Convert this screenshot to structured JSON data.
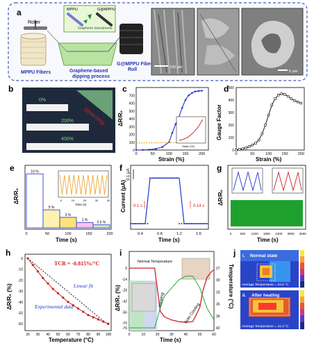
{
  "panels": {
    "a": {
      "label": "a",
      "roller_label": "Roller",
      "fiber_label": "MPPU Fibers",
      "mppu_tag": "MPPU",
      "gmppu_tag": "G@MPPU",
      "nanosheets_label": "Graphene nanosheets",
      "process_label_line1": "Graphene-based",
      "process_label_line2": "dipping process",
      "roll_label_line1": "G@MPPU Fiber",
      "roll_label_line2": "Roll",
      "scale1": "100 µm",
      "scale2": "5 µm"
    },
    "b": {
      "label": "b",
      "stretch_label": "Stretching",
      "pct0": "0%",
      "pct200": "200%",
      "pct400": "400%"
    },
    "c": {
      "label": "c",
      "xlabel": "Strain (%)",
      "ylabel": "ΔR/R₀",
      "yticks": [
        "0",
        "100",
        "200",
        "300",
        "400",
        "500",
        "600",
        "700"
      ],
      "xticks": [
        "0",
        "50",
        "100",
        "150",
        "200"
      ],
      "inset_xlabel": "Strain (%)"
    },
    "d": {
      "label": "d",
      "xlabel": "Strain (%)",
      "ylabel": "Gauge Factor",
      "yticks": [
        "0",
        "100",
        "200",
        "300",
        "400",
        "500"
      ],
      "xticks": [
        "0",
        "50",
        "100",
        "150",
        "200"
      ]
    },
    "e": {
      "label": "e",
      "xlabel": "Time (s)",
      "ylabel": "ΔR/R₀",
      "xticks": [
        "0",
        "50",
        "100",
        "150",
        "200"
      ],
      "bar_labels": [
        "10 %",
        "5 %",
        "3 %",
        "1 %",
        "0.5 %"
      ],
      "inset_xlabel": "Time (s)",
      "inset_xticks": [
        "0",
        "10",
        "20",
        "30",
        "40"
      ]
    },
    "f": {
      "label": "f",
      "xlabel": "Time (s)",
      "ylabel": "Current (µA)",
      "xticks": [
        "0.4",
        "0.8",
        "1.2",
        "1.6"
      ],
      "scale_label": "0.1 µA",
      "rise_label": "0.1 s",
      "fall_label": "0.14 s"
    },
    "g": {
      "label": "g",
      "xlabel": "Time (s)",
      "ylabel": "ΔR/R₀",
      "xticks": [
        "0",
        "600",
        "1200",
        "1800",
        "2400",
        "3000",
        "3600"
      ]
    },
    "h": {
      "label": "h",
      "xlabel": "Temperature (°C)",
      "ylabel": "ΔR/R₀ (%)",
      "tcr_label": "TCR = -0.815%/°C",
      "fit_label": "Linear fit",
      "data_label": "Experimental data",
      "yticks": [
        "0",
        "-10",
        "-20",
        "-30",
        "-40",
        "-50",
        "-60"
      ],
      "xticks": [
        "20",
        "30",
        "40",
        "50",
        "60",
        "70",
        "80",
        "90",
        "100"
      ]
    },
    "i": {
      "label": "i",
      "xlabel": "Time (s)",
      "ylabel_left": "ΔR/R₀ (%)",
      "ylabel_right": "Temperature (°C)",
      "normal_label": "Normal Temperature",
      "heating_label": "Heating",
      "cooling_label": "Auto Cooling",
      "yticks_left": [
        "0",
        "-14",
        "-28",
        "-42",
        "-56",
        "-70",
        "-76"
      ],
      "yticks_right": [
        "27",
        "30",
        "33",
        "36",
        "39",
        "42"
      ],
      "xticks": [
        "0",
        "10",
        "20",
        "30",
        "40",
        "50",
        "60"
      ]
    },
    "j": {
      "label": "j",
      "top_tag": "i.",
      "top_title": "Normal state",
      "top_avg": "Average Temperature = 34.5 °C",
      "bottom_tag": "ii.",
      "bottom_title": "After heating",
      "bottom_avg": "Average Temperature = 41.3 °C"
    }
  },
  "colors": {
    "blue_series": "#2233cc",
    "red_series": "#cc2222",
    "orange_series": "#e8a020",
    "green_series": "#22aa33",
    "dash_border": "#4455bb"
  },
  "chart_data": [
    {
      "type": "line",
      "panel": "c",
      "xlabel": "Strain (%)",
      "ylabel": "ΔR/R₀",
      "xlim": [
        0,
        220
      ],
      "ylim": [
        0,
        800
      ],
      "series": [
        {
          "x": [
            0,
            20,
            40,
            60,
            80,
            100,
            110,
            120,
            130,
            140,
            150,
            160,
            170,
            180,
            190,
            200
          ],
          "y": [
            0,
            2,
            5,
            15,
            40,
            100,
            220,
            330,
            420,
            540,
            640,
            700,
            730,
            750,
            755,
            760
          ]
        },
        {
          "x": [
            0,
            50,
            100,
            150,
            200
          ],
          "y": [
            90,
            92,
            95,
            98,
            100
          ]
        }
      ]
    },
    {
      "type": "line",
      "panel": "d",
      "xlabel": "Strain (%)",
      "ylabel": "Gauge Factor",
      "xlim": [
        0,
        210
      ],
      "ylim": [
        0,
        500
      ],
      "series": [
        {
          "x": [
            0,
            10,
            20,
            30,
            40,
            50,
            60,
            70,
            80,
            90,
            100,
            110,
            120,
            130,
            140,
            150,
            160,
            170,
            180,
            190,
            200
          ],
          "y": [
            0,
            5,
            10,
            18,
            28,
            40,
            55,
            80,
            130,
            200,
            280,
            360,
            410,
            440,
            450,
            445,
            430,
            410,
            395,
            385,
            375
          ]
        }
      ]
    },
    {
      "type": "bar",
      "panel": "e",
      "xlabel": "Time (s)",
      "ylabel": "ΔR/R₀",
      "categories": [
        "10 %",
        "5 %",
        "3 %",
        "1 %",
        "0.5 %"
      ],
      "values": [
        18,
        6,
        3.5,
        1.8,
        1.0
      ]
    },
    {
      "type": "line",
      "panel": "f",
      "xlabel": "Time (s)",
      "ylabel": "Current (µA)",
      "xlim": [
        0.2,
        1.8
      ],
      "series": [
        {
          "x": [
            0.2,
            0.5,
            0.6,
            1.2,
            1.3,
            1.8
          ],
          "y": [
            0.0,
            0.0,
            0.16,
            0.16,
            0.0,
            0.0
          ]
        }
      ]
    },
    {
      "type": "line",
      "panel": "h",
      "xlabel": "Temperature (°C)",
      "ylabel": "ΔR/R₀ (%)",
      "xlim": [
        20,
        100
      ],
      "ylim": [
        -65,
        0
      ],
      "series": [
        {
          "x": [
            20,
            25,
            30,
            35,
            40,
            45,
            50,
            55,
            60,
            65,
            70,
            75,
            80,
            85,
            90,
            95,
            100
          ],
          "y": [
            0,
            -6,
            -12,
            -18,
            -23,
            -28,
            -32,
            -36,
            -40,
            -43,
            -46,
            -49,
            -52,
            -54,
            -56,
            -58,
            -60
          ]
        }
      ]
    },
    {
      "type": "line",
      "panel": "i",
      "xlabel": "Time (s)",
      "xlim": [
        0,
        60
      ],
      "series": [
        {
          "x": [
            0,
            5,
            10,
            15,
            18,
            22,
            25,
            30,
            35,
            40,
            45,
            50,
            52,
            55,
            58,
            60
          ],
          "y": [
            0,
            0,
            0,
            0,
            0,
            -55,
            -62,
            -66,
            -68,
            -69,
            -68,
            -50,
            -30,
            -12,
            -5,
            -2
          ]
        },
        {
          "x": [
            0,
            5,
            10,
            15,
            18,
            22,
            25,
            30,
            35,
            40,
            45,
            50,
            55,
            60
          ],
          "y": [
            28,
            28,
            28,
            28,
            28,
            33,
            36,
            38,
            40,
            41,
            41,
            38,
            33,
            30
          ]
        }
      ]
    }
  ]
}
